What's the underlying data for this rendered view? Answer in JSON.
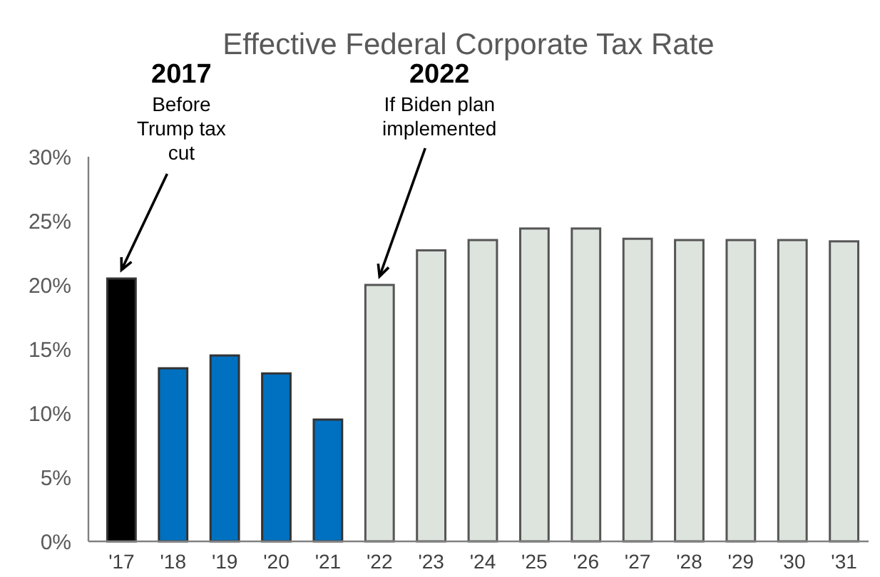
{
  "chart_data": {
    "type": "bar",
    "title": "Effective Federal Corporate Tax Rate",
    "categories": [
      "'17",
      "'18",
      "'19",
      "'20",
      "'21",
      "'22",
      "'23",
      "'24",
      "'25",
      "'26",
      "'27",
      "'28",
      "'29",
      "'30",
      "'31"
    ],
    "values": [
      20.5,
      13.5,
      14.5,
      13.1,
      9.5,
      20.0,
      22.7,
      23.5,
      24.4,
      24.4,
      23.6,
      23.5,
      23.5,
      23.5,
      23.4
    ],
    "colors": [
      "#000000",
      "#0070c0",
      "#0070c0",
      "#0070c0",
      "#0070c0",
      "#dde3dd",
      "#dde3dd",
      "#dde3dd",
      "#dde3dd",
      "#dde3dd",
      "#dde3dd",
      "#dde3dd",
      "#dde3dd",
      "#dde3dd",
      "#dde3dd"
    ],
    "ylim": [
      0,
      30
    ],
    "yticks": [
      {
        "value": 0,
        "label": "0%"
      },
      {
        "value": 5,
        "label": "5%"
      },
      {
        "value": 10,
        "label": "10%"
      },
      {
        "value": 15,
        "label": "15%"
      },
      {
        "value": 20,
        "label": "20%"
      },
      {
        "value": 25,
        "label": "25%"
      },
      {
        "value": 30,
        "label": "30%"
      }
    ],
    "annotations": [
      {
        "text": "2017\nBefore\nTrump tax\ncut",
        "x": "'17",
        "y": 20.5
      },
      {
        "text": "2022\nIf Biden plan\nimplemented",
        "x": "'22",
        "y": 20.0
      }
    ],
    "grid": false
  }
}
